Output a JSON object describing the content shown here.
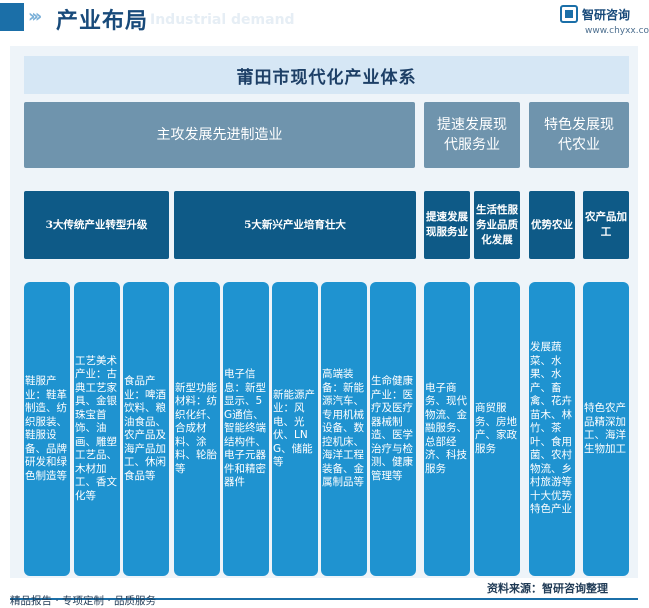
{
  "header": {
    "title": "产业布局",
    "subtitle_en": "Industrial demand",
    "brand_name": "智研咨询",
    "brand_url": "www.chyxx.com"
  },
  "diagram": {
    "title": "莆田市现代化产业体系",
    "categories": [
      {
        "label": "主攻发展先进制造业"
      },
      {
        "label": "提速发展现代服务业"
      },
      {
        "label": "特色发展现代农业"
      }
    ],
    "subcategories": [
      {
        "label": "3大传统产业转型升级"
      },
      {
        "label": "5大新兴产业培育壮大"
      },
      {
        "label": "提速发展现服务业"
      },
      {
        "label": "生活性服务业品质化发展"
      },
      {
        "label": "优势农业"
      },
      {
        "label": "农产品加工"
      }
    ],
    "columns": [
      {
        "text": "鞋服产业：鞋革制造、纺织服装、鞋服设备、品牌研发和绿色制造等"
      },
      {
        "text": "工艺美术产业：古典工艺家具、金银珠宝首饰、油画、雕塑工艺品、木材加工、香文化等"
      },
      {
        "text": "食品产业：啤酒饮料、粮油食品、农产品及海产品加工、休闲食品等"
      },
      {
        "text": "新型功能材料：纺织化纤、合成材料、涂料、轮胎等"
      },
      {
        "text": "电子信息：新型显示、5G通信、智能终端结构件、电子元器件和精密器件"
      },
      {
        "text": "新能源产业：风电、光伏、LNG、储能等"
      },
      {
        "text": "高端装备：新能源汽车、专用机械设备、数控机床、海洋工程装备、金属制品等"
      },
      {
        "text": "生命健康产业：医疗及医疗器械制造、医学治疗与检测、健康管理等"
      },
      {
        "text": "电子商务、现代物流、金融服务、总部经济、科技服务"
      },
      {
        "text": "商贸服务、房地产、家政服务"
      },
      {
        "text": "发展蔬菜、水果、水产、畜禽、花卉苗木、林竹、茶叶、食用菌、农村物流、乡村旅游等十大优势特色产业"
      },
      {
        "text": "特色农产品精深加工、海洋生物加工"
      }
    ]
  },
  "footer": {
    "left": "精品报告 · 专项定制 · 品质服务",
    "source": "资料来源：智研咨询整理"
  },
  "colors": {
    "category": "#6f94ad",
    "subcategory": "#0e5a87",
    "column": "#1f93d0",
    "title_bar": "#d6e7f5"
  }
}
